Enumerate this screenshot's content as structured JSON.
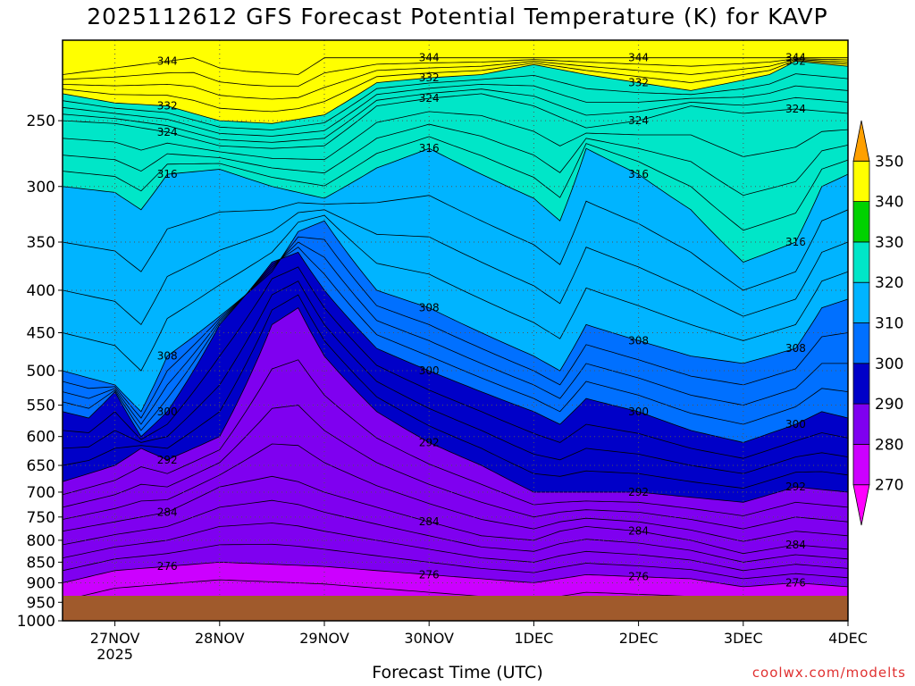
{
  "chart_data": {
    "type": "heatmap",
    "title": "2025112612 GFS Forecast Potential Temperature (K) for KAVP",
    "xlabel": "Forecast Time (UTC)",
    "ylabel": "",
    "credit": "coolwx.com/modelts",
    "x_ticks": [
      {
        "label": "27NOV",
        "sub": "2025",
        "time": "2025-11-27T00"
      },
      {
        "label": "28NOV",
        "sub": "",
        "time": "2025-11-28T00"
      },
      {
        "label": "29NOV",
        "sub": "",
        "time": "2025-11-29T00"
      },
      {
        "label": "30NOV",
        "sub": "",
        "time": "2025-11-30T00"
      },
      {
        "label": "1DEC",
        "sub": "",
        "time": "2025-12-01T00"
      },
      {
        "label": "2DEC",
        "sub": "",
        "time": "2025-12-02T00"
      },
      {
        "label": "3DEC",
        "sub": "",
        "time": "2025-12-03T00"
      },
      {
        "label": "4DEC",
        "sub": "",
        "time": "2025-12-04T00"
      }
    ],
    "x_range": [
      "2025-11-26T12",
      "2025-12-04T00"
    ],
    "y_ticks": [
      250,
      300,
      350,
      400,
      450,
      500,
      550,
      600,
      650,
      700,
      750,
      800,
      850,
      900,
      950,
      1000
    ],
    "y_range": [
      200,
      1000
    ],
    "y_scale": "log-pressure",
    "grid": true,
    "colorbar": {
      "labels": [
        270,
        280,
        290,
        300,
        310,
        320,
        330,
        340,
        350
      ],
      "bins": [
        {
          "range": "<270",
          "color": "#ff00ff"
        },
        {
          "range": "270-280",
          "color": "#cc00ff"
        },
        {
          "range": "280-290",
          "color": "#7f00f0"
        },
        {
          "range": "290-300",
          "color": "#0000c8"
        },
        {
          "range": "300-310",
          "color": "#0070ff"
        },
        {
          "range": "310-320",
          "color": "#00b4ff"
        },
        {
          "range": "320-330",
          "color": "#00e6c8"
        },
        {
          "range": "330-340",
          "color": "#00d200"
        },
        {
          "range": "340-350",
          "color": "#ffff00"
        },
        {
          "range": ">350",
          "color": "#ffa000"
        }
      ]
    },
    "ground_color": "#a05a2c",
    "level_profiles": [
      {
        "theta": 344,
        "points": [
          [
            0,
            220
          ],
          [
            18,
            214
          ],
          [
            30,
            210
          ],
          [
            36,
            216
          ],
          [
            42,
            218
          ],
          [
            54,
            220
          ],
          [
            60,
            210
          ]
        ]
      },
      {
        "theta": 332,
        "points": [
          [
            0,
            232
          ],
          [
            12,
            238
          ],
          [
            24,
            240
          ],
          [
            36,
            250
          ],
          [
            48,
            252
          ],
          [
            60,
            246
          ],
          [
            72,
            225
          ],
          [
            84,
            222
          ],
          [
            96,
            220
          ],
          [
            108,
            214
          ],
          [
            120,
            220
          ],
          [
            144,
            230
          ],
          [
            162,
            220
          ],
          [
            168,
            212
          ],
          [
            180,
            215
          ]
        ]
      },
      {
        "theta": 324,
        "points": [
          [
            0,
            250
          ],
          [
            12,
            252
          ],
          [
            24,
            258
          ],
          [
            36,
            268
          ],
          [
            48,
            270
          ],
          [
            60,
            268
          ],
          [
            72,
            240
          ],
          [
            84,
            235
          ],
          [
            96,
            232
          ],
          [
            108,
            240
          ],
          [
            120,
            255
          ],
          [
            132,
            250
          ],
          [
            144,
            240
          ],
          [
            156,
            245
          ],
          [
            168,
            242
          ],
          [
            180,
            245
          ]
        ]
      },
      {
        "theta": 316,
        "points": [
          [
            0,
            300
          ],
          [
            12,
            305
          ],
          [
            18,
            320
          ],
          [
            24,
            290
          ],
          [
            36,
            286
          ],
          [
            48,
            300
          ],
          [
            60,
            310
          ],
          [
            72,
            285
          ],
          [
            84,
            270
          ],
          [
            96,
            290
          ],
          [
            108,
            310
          ],
          [
            114,
            330
          ],
          [
            120,
            270
          ],
          [
            132,
            290
          ],
          [
            144,
            320
          ],
          [
            156,
            370
          ],
          [
            168,
            350
          ],
          [
            174,
            300
          ],
          [
            180,
            290
          ]
        ]
      },
      {
        "theta": 308,
        "points": [
          [
            0,
            500
          ],
          [
            12,
            520
          ],
          [
            18,
            560
          ],
          [
            24,
            480
          ],
          [
            36,
            430
          ],
          [
            48,
            380
          ],
          [
            54,
            340
          ],
          [
            60,
            330
          ],
          [
            72,
            400
          ],
          [
            84,
            420
          ],
          [
            96,
            450
          ],
          [
            108,
            480
          ],
          [
            114,
            500
          ],
          [
            120,
            440
          ],
          [
            132,
            460
          ],
          [
            144,
            480
          ],
          [
            156,
            490
          ],
          [
            168,
            470
          ],
          [
            174,
            420
          ],
          [
            180,
            410
          ]
        ]
      },
      {
        "theta": 300,
        "points": [
          [
            0,
            560
          ],
          [
            6,
            570
          ],
          [
            12,
            530
          ],
          [
            18,
            600
          ],
          [
            24,
            560
          ],
          [
            36,
            440
          ],
          [
            48,
            370
          ],
          [
            54,
            360
          ],
          [
            60,
            400
          ],
          [
            72,
            470
          ],
          [
            84,
            500
          ],
          [
            96,
            530
          ],
          [
            108,
            560
          ],
          [
            114,
            580
          ],
          [
            120,
            540
          ],
          [
            132,
            560
          ],
          [
            144,
            590
          ],
          [
            156,
            610
          ],
          [
            168,
            580
          ],
          [
            174,
            560
          ],
          [
            180,
            570
          ]
        ]
      },
      {
        "theta": 292,
        "points": [
          [
            0,
            680
          ],
          [
            12,
            650
          ],
          [
            18,
            620
          ],
          [
            24,
            640
          ],
          [
            36,
            600
          ],
          [
            48,
            440
          ],
          [
            54,
            420
          ],
          [
            60,
            480
          ],
          [
            72,
            560
          ],
          [
            84,
            610
          ],
          [
            96,
            650
          ],
          [
            108,
            700
          ],
          [
            120,
            700
          ],
          [
            132,
            700
          ],
          [
            144,
            710
          ],
          [
            156,
            720
          ],
          [
            168,
            690
          ],
          [
            180,
            700
          ]
        ]
      },
      {
        "theta": 284,
        "points": [
          [
            0,
            780
          ],
          [
            12,
            760
          ],
          [
            24,
            740
          ],
          [
            36,
            690
          ],
          [
            48,
            670
          ],
          [
            54,
            680
          ],
          [
            60,
            700
          ],
          [
            72,
            730
          ],
          [
            84,
            760
          ],
          [
            96,
            790
          ],
          [
            108,
            800
          ],
          [
            114,
            780
          ],
          [
            120,
            770
          ],
          [
            132,
            780
          ],
          [
            144,
            800
          ],
          [
            156,
            830
          ],
          [
            168,
            810
          ],
          [
            180,
            820
          ]
        ]
      },
      {
        "theta": 276,
        "points": [
          [
            0,
            900
          ],
          [
            12,
            870
          ],
          [
            24,
            860
          ],
          [
            36,
            850
          ],
          [
            48,
            855
          ],
          [
            60,
            860
          ],
          [
            72,
            870
          ],
          [
            84,
            880
          ],
          [
            96,
            890
          ],
          [
            108,
            900
          ],
          [
            120,
            880
          ],
          [
            144,
            890
          ],
          [
            156,
            910
          ],
          [
            168,
            900
          ],
          [
            180,
            910
          ]
        ]
      }
    ]
  }
}
